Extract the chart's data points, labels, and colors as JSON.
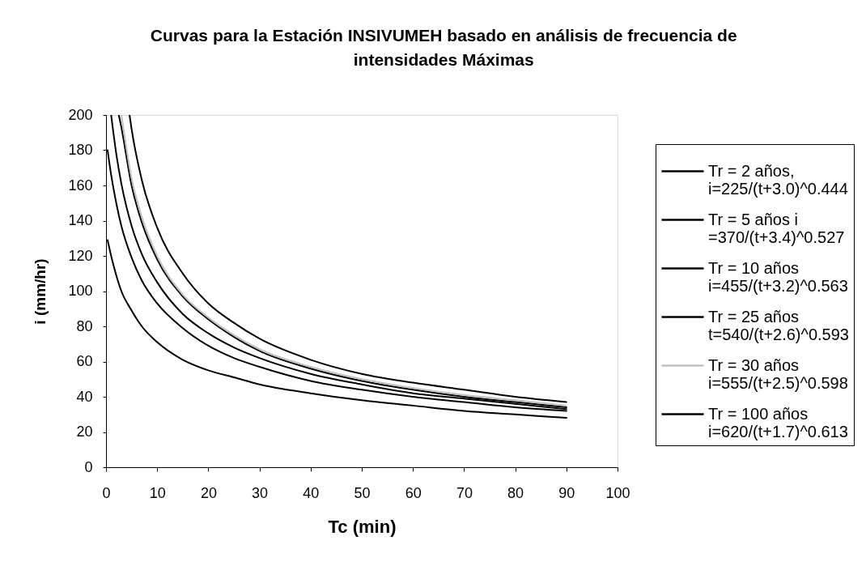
{
  "chart_data": {
    "type": "line",
    "title": "Curvas para la Estación INSIVUMEH basado en análisis de frecuencia de intensidades Máximas",
    "xlabel": "Tc (min)",
    "ylabel": "i (mm/hr)",
    "xlim": [
      0,
      100
    ],
    "ylim": [
      0,
      200
    ],
    "xticks": [
      0,
      10,
      20,
      30,
      40,
      50,
      60,
      70,
      80,
      90,
      100
    ],
    "yticks": [
      0,
      20,
      40,
      60,
      80,
      100,
      120,
      140,
      160,
      180,
      200
    ],
    "legend": "right",
    "line_style": "solid",
    "series": [
      {
        "name": "Tr = 2 años, i=225/(t+3.0)^0.444",
        "color": "#000000",
        "x": [
          0.3,
          1,
          2,
          3,
          5,
          7,
          10,
          15,
          20,
          25,
          30,
          40,
          50,
          60,
          70,
          80,
          90
        ],
        "values": [
          129,
          120,
          109,
          100,
          89,
          80,
          71,
          61,
          55,
          51,
          47,
          42,
          38,
          35,
          32,
          30,
          28
        ]
      },
      {
        "name": "Tr = 5 años i =370/(t+3.4)^0.527",
        "color": "#000000",
        "x": [
          0.3,
          1,
          2,
          3,
          5,
          7,
          10,
          15,
          20,
          25,
          30,
          40,
          50,
          60,
          70,
          80,
          90
        ],
        "values": [
          180,
          166,
          150,
          137,
          119,
          106,
          93,
          79,
          69,
          62,
          57,
          49,
          44,
          40,
          37,
          34,
          32
        ]
      },
      {
        "name": "Tr = 10 años i=455/(t+3.2)^0.563",
        "color": "#000000",
        "x": [
          1,
          2,
          3,
          5,
          7,
          10,
          15,
          20,
          25,
          30,
          40,
          50,
          60,
          70,
          80,
          90
        ],
        "values": [
          200,
          178,
          161,
          137,
          121,
          105,
          87,
          76,
          68,
          62,
          53,
          47,
          42,
          39,
          36,
          33
        ]
      },
      {
        "name": "Tr = 25 años t=540/(t+2.6)^0.593",
        "color": "#000000",
        "x": [
          2.5,
          3,
          5,
          7,
          10,
          15,
          20,
          25,
          30,
          40,
          50,
          60,
          70,
          80,
          90
        ],
        "values": [
          200,
          193,
          160,
          139,
          118,
          97,
          84,
          74,
          66,
          56,
          49,
          44,
          40,
          37,
          34
        ]
      },
      {
        "name": "Tr = 30 años i=555/(t+2.5)^0.598",
        "color": "#c0c0c0",
        "x": [
          3,
          5,
          7,
          10,
          15,
          20,
          25,
          30,
          40,
          50,
          60,
          70,
          80,
          90
        ],
        "values": [
          200,
          164,
          142,
          120,
          98,
          85,
          75,
          67,
          57,
          50,
          45,
          41,
          38,
          35
        ]
      },
      {
        "name": "Tr = 100 años i=620/(t+1.7)^0.613",
        "color": "#000000",
        "x": [
          4.6,
          5,
          7,
          10,
          15,
          20,
          25,
          30,
          40,
          50,
          60,
          70,
          80,
          90
        ],
        "values": [
          200,
          192,
          163,
          136,
          110,
          93,
          82,
          73,
          61,
          53,
          48,
          44,
          40,
          37
        ]
      }
    ]
  }
}
